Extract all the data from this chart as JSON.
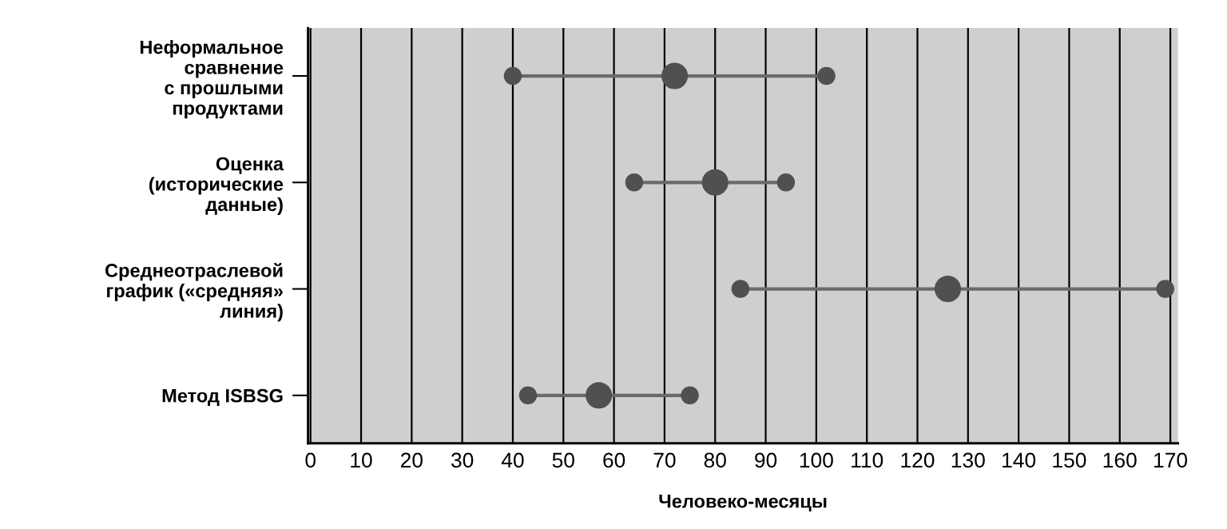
{
  "chart_data": {
    "type": "scatter",
    "orientation": "horizontal",
    "xlabel": "Человеко-месяцы",
    "categories": [
      "Неформальное\nсравнение\nс прошлыми\nпродуктами",
      "Оценка\n(исторические\nданные)",
      "Среднеотраслевой\nграфик («средняя»\nлиния)",
      "Метод ISBSG"
    ],
    "series": [
      {
        "color": "#505050",
        "values": [
          40,
          64,
          85,
          43
        ]
      },
      {
        "color": "#505050",
        "values": [
          72,
          80,
          126,
          57
        ]
      },
      {
        "color": "#505050",
        "values": [
          102,
          94,
          169,
          75
        ]
      }
    ],
    "xlim": [
      -0.5,
      171.5
    ],
    "xticks": [
      0,
      10,
      20,
      30,
      40,
      50,
      60,
      70,
      80,
      90,
      100,
      110,
      120,
      130,
      140,
      150,
      160,
      170
    ],
    "grid": "x",
    "marker": "circle",
    "line_style": "solid"
  }
}
